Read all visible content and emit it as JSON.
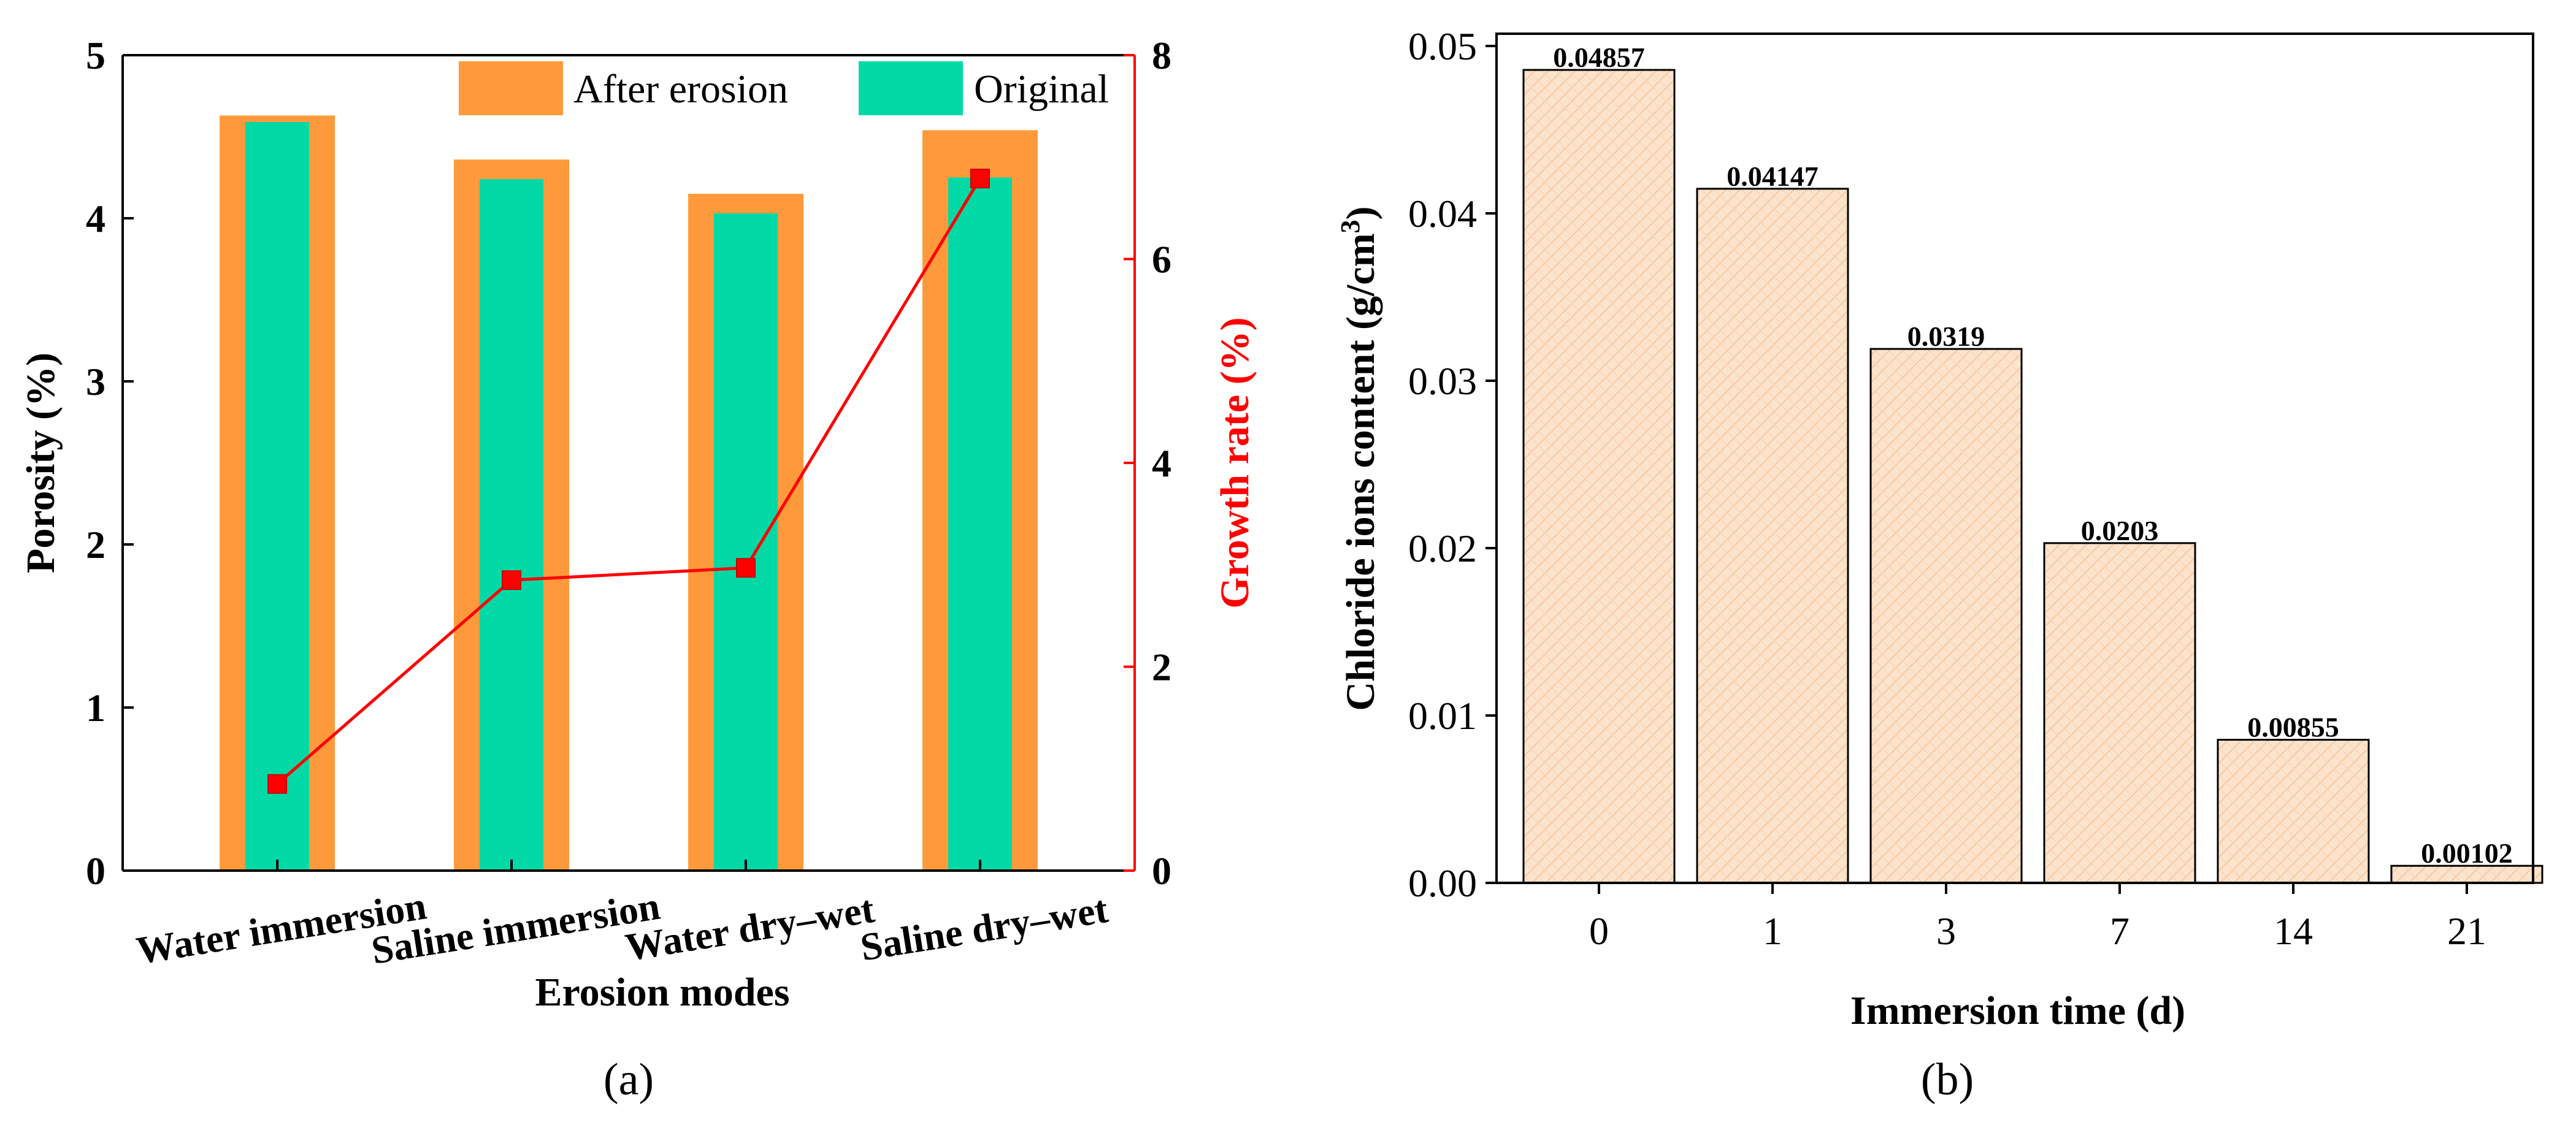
{
  "chart_data": [
    {
      "type": "bar",
      "panel_label": "(a)",
      "categories": [
        "Water immersion",
        "Saline immersion",
        "Water dry–wet",
        "Saline dry–wet"
      ],
      "xlabel": "Erosion modes",
      "ylabel": "Porosity (%)",
      "ylabel_right": "Growth rate (%)",
      "ylim": [
        0,
        5
      ],
      "yticks": [
        "0",
        "1",
        "2",
        "3",
        "4",
        "5"
      ],
      "ylim_right": [
        0,
        8
      ],
      "yticks_right": [
        "0",
        "2",
        "4",
        "6",
        "8"
      ],
      "legend_position": "top-right",
      "series": [
        {
          "name": "After erosion",
          "kind": "bar",
          "color": "#FF9A3C",
          "values": [
            4.63,
            4.36,
            4.15,
            4.54
          ]
        },
        {
          "name": "Original",
          "kind": "bar",
          "color": "#00D9A6",
          "values": [
            4.59,
            4.24,
            4.03,
            4.25
          ]
        },
        {
          "kind": "line",
          "axis": "right",
          "color": "#FF0000",
          "values": [
            0.85,
            2.85,
            2.97,
            6.79
          ]
        }
      ],
      "grid": false
    },
    {
      "type": "bar",
      "panel_label": "(b)",
      "categories": [
        "0",
        "1",
        "3",
        "7",
        "14",
        "21"
      ],
      "values": [
        0.04857,
        0.04147,
        0.0319,
        0.0203,
        0.00855,
        0.00102
      ],
      "data_labels": [
        "0.04857",
        "0.04147",
        "0.0319",
        "0.0203",
        "0.00855",
        "0.00102"
      ],
      "xlabel": "Immersion time (d)",
      "ylabel_main": "Chloride ions content (g/cm",
      "ylabel_sup": "3",
      "ylabel_end": ")",
      "ylim": [
        0,
        0.05
      ],
      "yticks": [
        "0.00",
        "0.01",
        "0.02",
        "0.03",
        "0.04",
        "0.05"
      ],
      "bar_color": "#FCE3CB",
      "bar_edge": "#000000",
      "grid": false
    }
  ]
}
